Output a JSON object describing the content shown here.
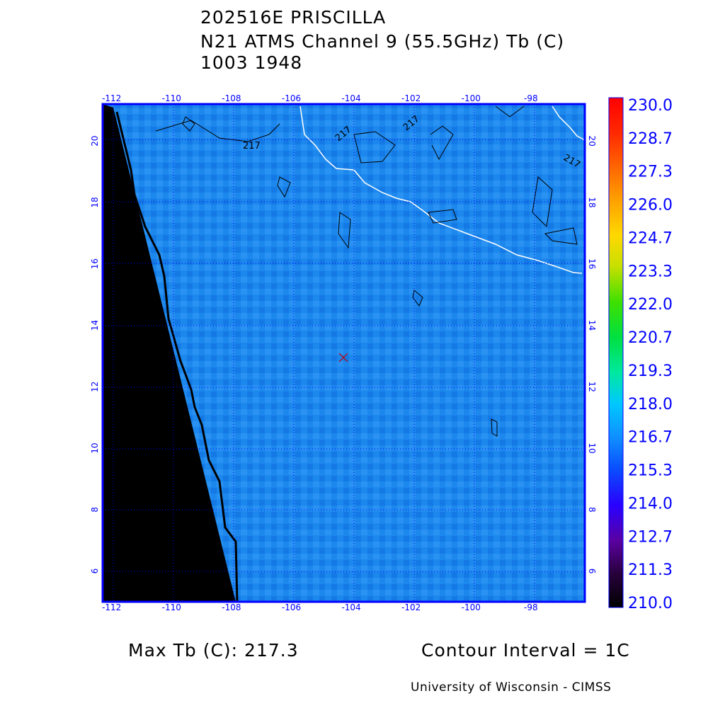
{
  "title": {
    "line1": "202516E PRISCILLA",
    "line2": "N21 ATMS Channel 9 (55.5GHz) Tb (C)",
    "line3": "1003 1948"
  },
  "map": {
    "lon_ticks": [
      "-112",
      "-110",
      "-108",
      "-106",
      "-104",
      "-102",
      "-100",
      "-98"
    ],
    "lat_ticks": [
      "20",
      "18",
      "16",
      "14",
      "12",
      "10",
      "8",
      "6"
    ],
    "lon_values": [
      -112,
      -110,
      -108,
      -106,
      -104,
      -102,
      -100,
      -98
    ],
    "lat_values": [
      20,
      18,
      16,
      14,
      12,
      10,
      8,
      6
    ],
    "lon_range": [
      -112.3,
      -96.2
    ],
    "lat_range": [
      5.0,
      21.2
    ],
    "storm_center": {
      "lon": -104.3,
      "lat": 13.0
    },
    "contour_labels": [
      "217",
      "217",
      "217",
      "217"
    ],
    "field_color": "#1a86ee",
    "frame_color": "#0000ff",
    "coastline_color": "#ffffff",
    "no_data_color": "#000000"
  },
  "colorbar": {
    "labels": [
      "230.0",
      "228.7",
      "227.3",
      "226.0",
      "224.7",
      "223.3",
      "222.0",
      "220.7",
      "219.3",
      "218.0",
      "216.7",
      "215.3",
      "214.0",
      "212.7",
      "211.3",
      "210.0"
    ],
    "range": [
      210.0,
      230.0
    ],
    "label_color": "#0000ff"
  },
  "footer": {
    "max_tb": "Max Tb (C): 217.3",
    "contour_interval": "Contour Interval = 1C",
    "credit": "University of Wisconsin - CIMSS"
  }
}
